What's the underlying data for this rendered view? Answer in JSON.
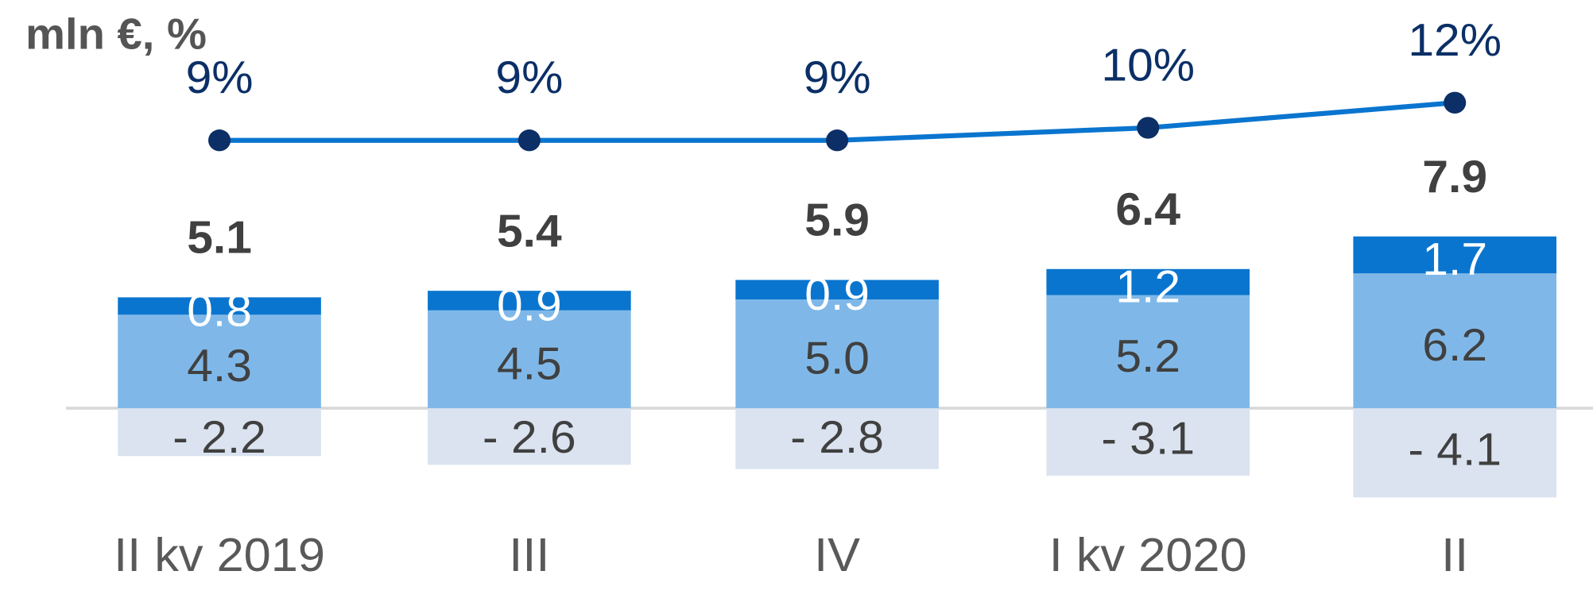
{
  "chart_data": {
    "type": "stacked-bar-line",
    "title": "mln €, %",
    "categories": [
      "II kv 2019",
      "III",
      "IV",
      "I kv 2020",
      "II"
    ],
    "series": [
      {
        "color": "#7fb8e8",
        "values": [
          4.3,
          4.5,
          5.0,
          5.2,
          6.2
        ],
        "value_labels": [
          "4.3",
          "4.5",
          "5.0",
          "5.2",
          "6.2"
        ]
      },
      {
        "color": "#0a75cf",
        "values": [
          0.8,
          0.9,
          0.9,
          1.2,
          1.7
        ]
      },
      {
        "color": "#dae3ef",
        "values": [
          -2.2,
          -2.6,
          -2.8,
          -3.1,
          -4.1
        ],
        "value_labels": [
          "- 2.2",
          "- 2.6",
          "- 2.8",
          "- 3.1",
          "- 4.1"
        ]
      }
    ],
    "totals": [
      5.1,
      5.4,
      5.9,
      6.4,
      7.9
    ],
    "line": {
      "color": "#0a75cf",
      "marker_color": "#0b2f66",
      "values": [
        9,
        9,
        9,
        10,
        12
      ],
      "value_labels": [
        "9%",
        "9%",
        "9%",
        "10%",
        "12%"
      ]
    }
  }
}
